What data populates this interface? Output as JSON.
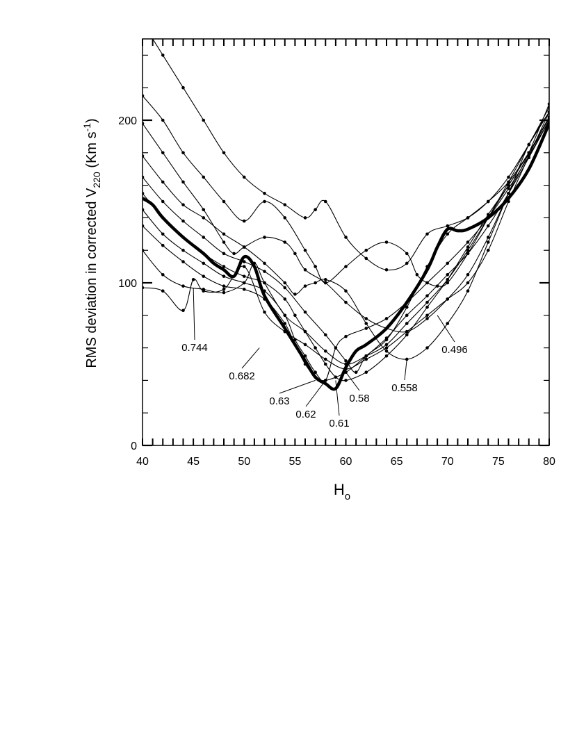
{
  "chart_data": {
    "type": "line",
    "xlabel": "H",
    "xlabel_sub": "o",
    "ylabel": "RMS deviation in corrected V",
    "ylabel_sub": "220",
    "ylabel_units_a": " (Km s",
    "ylabel_units_sup": "-1",
    "ylabel_units_b": ")",
    "xlim": [
      40,
      80
    ],
    "ylim": [
      0,
      250
    ],
    "x_ticks": [
      40,
      45,
      50,
      55,
      60,
      65,
      70,
      75,
      80
    ],
    "y_ticks": [
      0,
      100,
      200
    ],
    "grid": false,
    "series": [
      {
        "name": "0.744",
        "x": [
          40,
          42,
          44,
          45,
          46,
          48,
          50,
          52,
          54,
          56,
          58,
          60,
          62,
          64,
          66,
          68,
          70,
          72,
          74,
          76,
          78,
          80
        ],
        "y": [
          97,
          95,
          83,
          102,
          95,
          96,
          110,
          82,
          70,
          62,
          53,
          47,
          53,
          60,
          70,
          80,
          90,
          100,
          120,
          150,
          178,
          205
        ]
      },
      {
        "name": "0.682",
        "x": [
          40,
          42,
          44,
          46,
          48,
          50,
          51,
          52,
          54,
          56,
          58,
          60,
          62,
          64,
          66,
          68,
          70,
          72,
          74,
          76,
          78,
          80
        ],
        "y": [
          120,
          105,
          98,
          96,
          94,
          100,
          112,
          100,
          80,
          70,
          58,
          50,
          55,
          62,
          75,
          88,
          102,
          120,
          140,
          160,
          180,
          202
        ]
      },
      {
        "name": "0.63",
        "x": [
          40,
          42,
          44,
          46,
          48,
          50,
          52,
          54,
          55,
          56,
          57,
          58,
          60,
          62,
          64,
          66,
          68,
          70,
          72,
          74,
          76,
          78,
          80
        ],
        "y": [
          135,
          123,
          113,
          104,
          98,
          96,
          90,
          75,
          62,
          50,
          42,
          40,
          45,
          55,
          66,
          80,
          92,
          105,
          118,
          135,
          155,
          177,
          200
        ]
      },
      {
        "name": "0.62",
        "x": [
          40,
          42,
          44,
          46,
          48,
          50,
          52,
          54,
          55,
          56,
          57,
          58,
          59,
          60,
          62,
          64,
          66,
          68,
          70,
          72,
          74,
          76,
          78,
          80
        ],
        "y": [
          145,
          130,
          120,
          112,
          104,
          100,
          95,
          80,
          65,
          55,
          45,
          40,
          60,
          67,
          72,
          78,
          88,
          100,
          112,
          125,
          140,
          158,
          178,
          200
        ]
      },
      {
        "name": "0.61",
        "x": [
          40,
          42,
          44,
          46,
          48,
          50,
          52,
          54,
          55,
          56,
          57,
          58,
          59,
          60,
          62,
          64,
          66,
          68,
          70,
          72,
          74,
          76,
          78,
          80
        ],
        "y": [
          155,
          140,
          128,
          118,
          110,
          104,
          100,
          90,
          80,
          70,
          60,
          50,
          42,
          40,
          45,
          55,
          68,
          85,
          102,
          122,
          142,
          160,
          180,
          201
        ]
      },
      {
        "name": "0.58",
        "x": [
          40,
          42,
          44,
          46,
          48,
          50,
          52,
          54,
          56,
          58,
          60,
          61,
          62,
          64,
          66,
          68,
          70,
          72,
          74,
          76,
          78,
          80
        ],
        "y": [
          165,
          150,
          138,
          128,
          118,
          113,
          107,
          97,
          82,
          68,
          52,
          45,
          55,
          65,
          85,
          110,
          130,
          140,
          150,
          162,
          180,
          199
        ]
      },
      {
        "name": "0.558",
        "x": [
          40,
          42,
          44,
          46,
          48,
          50,
          52,
          54,
          55,
          56,
          57,
          58,
          60,
          62,
          64,
          66,
          68,
          70,
          72,
          74,
          76,
          78,
          80
        ],
        "y": [
          178,
          162,
          148,
          140,
          130,
          122,
          112,
          100,
          93,
          98,
          100,
          102,
          95,
          75,
          58,
          53,
          60,
          75,
          95,
          125,
          155,
          185,
          205
        ]
      },
      {
        "name": "0.496",
        "x": [
          40,
          42,
          44,
          46,
          48,
          49,
          50,
          52,
          54,
          55,
          56,
          58,
          60,
          62,
          64,
          66,
          68,
          70,
          72,
          74,
          76,
          78,
          80
        ],
        "y": [
          198,
          180,
          162,
          145,
          125,
          118,
          122,
          128,
          125,
          118,
          108,
          100,
          88,
          78,
          72,
          70,
          78,
          90,
          105,
          128,
          155,
          180,
          210
        ]
      },
      {
        "name": "",
        "x": [
          40,
          42,
          44,
          46,
          48,
          50,
          52,
          54,
          56,
          57,
          58,
          60,
          62,
          64,
          66,
          67,
          68,
          69,
          70,
          72,
          74,
          76,
          78,
          80
        ],
        "y": [
          215,
          200,
          180,
          165,
          150,
          138,
          150,
          140,
          120,
          110,
          100,
          110,
          120,
          125,
          118,
          105,
          100,
          98,
          100,
          118,
          140,
          162,
          185,
          208
        ]
      },
      {
        "name": "",
        "x": [
          40,
          42,
          44,
          46,
          48,
          50,
          52,
          54,
          56,
          57,
          58,
          60,
          62,
          64,
          66,
          68,
          70,
          72,
          74,
          76,
          78,
          80
        ],
        "y": [
          260,
          240,
          220,
          200,
          180,
          165,
          155,
          148,
          140,
          145,
          150,
          128,
          115,
          108,
          112,
          130,
          135,
          140,
          150,
          165,
          185,
          205
        ]
      }
    ],
    "average": {
      "x": [
        40,
        41,
        42,
        44,
        46,
        47,
        48,
        49,
        50,
        51,
        52,
        54,
        56,
        57,
        58,
        59,
        60,
        61,
        62,
        64,
        66,
        68,
        69,
        70,
        71,
        72,
        74,
        76,
        78,
        80
      ],
      "y": [
        152,
        148,
        140,
        128,
        118,
        112,
        108,
        104,
        116,
        110,
        92,
        72,
        52,
        42,
        38,
        35,
        48,
        58,
        62,
        72,
        88,
        108,
        122,
        133,
        132,
        133,
        140,
        152,
        170,
        198
      ]
    }
  }
}
